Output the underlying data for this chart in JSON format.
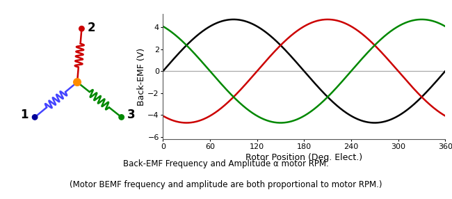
{
  "subtitle_line1": "Back-EMF Frequency and Amplitude α motor RPM.",
  "subtitle_line2": "(Motor BEMF frequency and amplitude are both proportional to motor RPM.)",
  "plot_xlabel": "Rotor Position (Deg. Elect.)",
  "plot_ylabel": "Back-EMF (V)",
  "amplitude": 4.7,
  "xlim": [
    0,
    360
  ],
  "ylim": [
    -6.2,
    5.2
  ],
  "xticks": [
    0,
    60,
    120,
    180,
    240,
    300,
    360
  ],
  "yticks": [
    -6,
    -4,
    -2,
    0,
    2,
    4
  ],
  "phase_colors": [
    "#000000",
    "#cc0000",
    "#008800"
  ],
  "phase_shifts_deg": [
    0,
    -120,
    -240
  ],
  "node_colors_center": "#FF8C00",
  "node_color1": "#000099",
  "node_color2": "#cc0000",
  "node_color3": "#008800",
  "coil_color1": "#4444ff",
  "coil_color2": "#cc0000",
  "coil_color3": "#008800",
  "background_color": "#ffffff",
  "n1x": -1.15,
  "n1y": -0.95,
  "n2x": 0.12,
  "n2y": 1.45,
  "n3x": 1.2,
  "n3y": -0.95
}
